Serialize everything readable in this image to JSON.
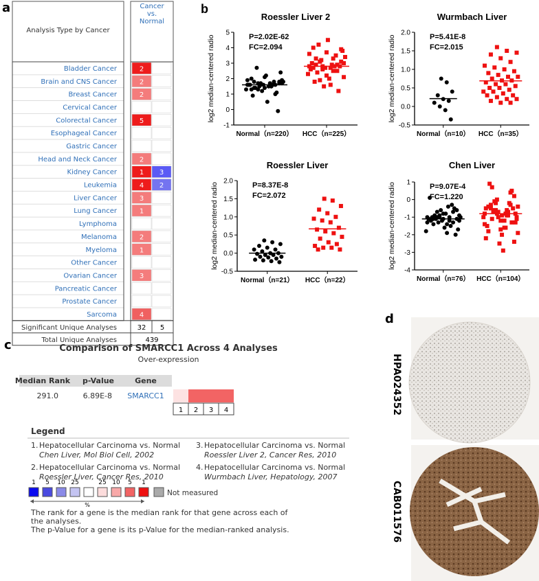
{
  "panel_a": {
    "letter": "a",
    "header": "Analysis Type by Cancer",
    "column_header": [
      "Cancer",
      "vs.",
      "Normal"
    ],
    "rows": [
      {
        "name": "Bladder Cancer",
        "over": 2,
        "over_color": "#ee1c1c",
        "under": null,
        "under_color": null
      },
      {
        "name": "Brain and CNS Cancer",
        "over": 2,
        "over_color": "#f47c7c",
        "under": null,
        "under_color": null
      },
      {
        "name": "Breast Cancer",
        "over": 2,
        "over_color": "#f47c7c",
        "under": null,
        "under_color": null
      },
      {
        "name": "Cervical Cancer",
        "over": null,
        "over_color": null,
        "under": null,
        "under_color": null
      },
      {
        "name": "Colorectal Cancer",
        "over": 5,
        "over_color": "#ee1c1c",
        "under": null,
        "under_color": null
      },
      {
        "name": "Esophageal Cancer",
        "over": null,
        "over_color": null,
        "under": null,
        "under_color": null
      },
      {
        "name": "Gastric Cancer",
        "over": null,
        "over_color": null,
        "under": null,
        "under_color": null
      },
      {
        "name": "Head and Neck Cancer",
        "over": 2,
        "over_color": "#f47c7c",
        "under": null,
        "under_color": null
      },
      {
        "name": "Kidney Cancer",
        "over": 1,
        "over_color": "#ee1c1c",
        "under": 3,
        "under_color": "#5a5af5"
      },
      {
        "name": "Leukemia",
        "over": 4,
        "over_color": "#ee1c1c",
        "under": 2,
        "under_color": "#7474f0"
      },
      {
        "name": "Liver Cancer",
        "over": 3,
        "over_color": "#f47c7c",
        "under": null,
        "under_color": null
      },
      {
        "name": "Lung Cancer",
        "over": 1,
        "over_color": "#f47c7c",
        "under": null,
        "under_color": null
      },
      {
        "name": "Lymphoma",
        "over": null,
        "over_color": null,
        "under": null,
        "under_color": null
      },
      {
        "name": "Melanoma",
        "over": 2,
        "over_color": "#f47c7c",
        "under": null,
        "under_color": null
      },
      {
        "name": "Myeloma",
        "over": 1,
        "over_color": "#f47c7c",
        "under": null,
        "under_color": null
      },
      {
        "name": "Other Cancer",
        "over": null,
        "over_color": null,
        "under": null,
        "under_color": null
      },
      {
        "name": "Ovarian Cancer",
        "over": 3,
        "over_color": "#f47c7c",
        "under": null,
        "under_color": null
      },
      {
        "name": "Pancreatic Cancer",
        "over": null,
        "over_color": null,
        "under": null,
        "under_color": null
      },
      {
        "name": "Prostate Cancer",
        "over": null,
        "over_color": null,
        "under": null,
        "under_color": null
      },
      {
        "name": "Sarcoma",
        "over": 4,
        "over_color": "#f06060",
        "under": null,
        "under_color": null
      }
    ],
    "significant": {
      "label": "Significant Unique Analyses",
      "over": 32,
      "under": 5
    },
    "total": {
      "label": "Total Unique Analyses",
      "value": 439
    }
  },
  "panel_b": {
    "letter": "b"
  },
  "chart_data": [
    {
      "type": "scatter",
      "title": "Roessler Liver 2",
      "ylabel": "log2 median-centered radio",
      "annotations": [
        "P=2.02E-62",
        "FC=2.094"
      ],
      "ylim": [
        -1,
        5
      ],
      "yticks": [
        -1,
        0,
        1,
        2,
        3,
        4,
        5
      ],
      "groups": [
        {
          "label": "Normal（n=220）",
          "color": "#000000",
          "marker": "circle",
          "mean": 1.6,
          "values": [
            1.6,
            1.5,
            1.7,
            1.8,
            1.4,
            1.6,
            1.9,
            1.3,
            1.5,
            1.7,
            2.0,
            1.2,
            1.6,
            1.8,
            1.4,
            2.2,
            1.1,
            1.6,
            1.5,
            1.7,
            2.4,
            0.9,
            1.6,
            1.8,
            1.3,
            2.7,
            0.5,
            -0.1,
            1.6,
            1.7,
            1.5,
            1.9,
            1.4,
            2.1,
            1.0,
            1.6,
            1.7,
            1.5,
            1.8,
            1.3
          ]
        },
        {
          "label": "HCC（n=225）",
          "color": "#ee1111",
          "marker": "square",
          "mean": 2.8,
          "values": [
            2.8,
            2.5,
            3.0,
            3.3,
            2.2,
            2.9,
            3.6,
            1.9,
            2.7,
            3.1,
            4.0,
            1.5,
            2.8,
            3.4,
            2.4,
            4.5,
            1.2,
            2.6,
            3.2,
            2.9,
            3.8,
            1.8,
            2.7,
            3.5,
            2.3,
            4.2,
            2.0,
            2.8,
            3.0,
            2.6,
            3.3,
            2.1,
            2.9,
            3.7,
            2.5,
            2.8,
            3.1,
            1.6,
            3.9,
            2.7
          ]
        }
      ]
    },
    {
      "type": "scatter",
      "title": "Wurmbach Liver",
      "ylabel": "log2 median-centered radio",
      "annotations": [
        "P=5.41E-8",
        "FC=2.015"
      ],
      "ylim": [
        -0.5,
        2
      ],
      "yticks": [
        -0.5,
        {
          "value": 0,
          "label": "0.0"
        },
        0.5,
        {
          "value": 1,
          "label": "1.0"
        },
        1.5,
        {
          "value": 2,
          "label": "2.0"
        }
      ],
      "groups": [
        {
          "label": "Normal（n=10）",
          "color": "#000000",
          "marker": "circle",
          "mean": 0.21,
          "values": [
            0.75,
            0.65,
            0.4,
            0.3,
            0.2,
            0.15,
            0.1,
            0.0,
            -0.1,
            -0.35
          ]
        },
        {
          "label": "HCC（n=35）",
          "color": "#ee1111",
          "marker": "square",
          "mean": 0.69,
          "values": [
            1.6,
            1.5,
            1.45,
            1.4,
            1.3,
            1.2,
            1.1,
            1.05,
            1.0,
            0.95,
            0.9,
            0.85,
            0.8,
            0.8,
            0.75,
            0.7,
            0.7,
            0.65,
            0.6,
            0.6,
            0.55,
            0.5,
            0.5,
            0.45,
            0.4,
            0.4,
            0.35,
            0.3,
            0.3,
            0.25,
            0.2,
            0.2,
            0.15,
            0.1,
            0.1
          ]
        }
      ]
    },
    {
      "type": "scatter",
      "title": "Roessler Liver",
      "ylabel": "log2 median-centered radio",
      "annotations": [
        "P=8.37E-8",
        "FC=2.072"
      ],
      "ylim": [
        -0.5,
        2
      ],
      "yticks": [
        -0.5,
        {
          "value": 0,
          "label": "0.0"
        },
        0.5,
        {
          "value": 1,
          "label": "1.0"
        },
        1.5,
        {
          "value": 2,
          "label": "2.0"
        }
      ],
      "groups": [
        {
          "label": "Normal（n=21）",
          "color": "#000000",
          "marker": "circle",
          "mean": 0.0,
          "values": [
            0.35,
            0.3,
            0.25,
            0.2,
            0.15,
            0.1,
            0.1,
            0.05,
            0.0,
            0.0,
            -0.02,
            -0.05,
            -0.05,
            -0.1,
            -0.1,
            -0.12,
            -0.15,
            -0.18,
            -0.2,
            -0.22,
            -0.25
          ]
        },
        {
          "label": "HCC（n=22）",
          "color": "#ee1111",
          "marker": "square",
          "mean": 0.67,
          "values": [
            1.5,
            1.45,
            1.3,
            1.2,
            1.1,
            1.0,
            0.95,
            0.9,
            0.85,
            0.7,
            0.65,
            0.6,
            0.55,
            0.45,
            0.4,
            0.3,
            0.25,
            0.2,
            0.15,
            0.15,
            0.1,
            0.1
          ]
        }
      ]
    },
    {
      "type": "scatter",
      "title": "Chen Liver",
      "ylabel": "log2 median-centered radio",
      "annotations": [
        "P=9.07E-4",
        "FC=1.220"
      ],
      "ylim": [
        -4,
        1
      ],
      "yticks": [
        -4,
        -3,
        -2,
        -1,
        0,
        1
      ],
      "groups": [
        {
          "label": "Normal（n=76）",
          "color": "#000000",
          "marker": "circle",
          "mean": -1.1,
          "values": [
            -0.9,
            -1.0,
            -1.2,
            -1.1,
            -0.8,
            -1.3,
            -1.0,
            -0.7,
            -1.4,
            -1.1,
            -1.2,
            -0.6,
            -1.5,
            -1.0,
            -0.9,
            -1.6,
            -0.5,
            -1.1,
            -1.3,
            -0.4,
            -1.7,
            -1.0,
            -1.2,
            -0.3,
            -1.8,
            -1.1,
            -0.8,
            -2.0,
            0.1,
            -1.0,
            -1.2,
            -0.9,
            -1.4,
            -1.1,
            -0.7,
            -1.3,
            -1.0,
            -1.9,
            -0.6,
            -1.1
          ]
        },
        {
          "label": "HCC（n=104）",
          "color": "#ee1111",
          "marker": "square",
          "mean": -0.8,
          "values": [
            -0.8,
            -0.6,
            -1.0,
            -0.5,
            -1.2,
            -0.3,
            -1.4,
            -0.1,
            -1.6,
            0.2,
            -1.8,
            -0.7,
            -0.9,
            -0.4,
            -1.1,
            -2.0,
            0.5,
            -2.2,
            -0.6,
            -0.8,
            -1.3,
            0.9,
            -2.5,
            -0.2,
            -1.0,
            -0.7,
            -2.9,
            -0.5,
            -1.5,
            0.0,
            -0.9,
            -1.1,
            -0.3,
            -1.7,
            0.4,
            -0.8,
            -0.6,
            -1.2,
            -2.4,
            -0.4,
            -1.0,
            -0.7,
            -1.9,
            0.7,
            -0.9,
            -1.3,
            -0.5,
            -0.2,
            -1.6,
            -0.8
          ]
        }
      ]
    }
  ],
  "panel_c": {
    "letter": "c",
    "title": "Comparison of SMARCC1 Across 4 Analyses",
    "subtitle": "Over-expression",
    "headers": [
      "Median Rank",
      "p-Value",
      "Gene"
    ],
    "row": [
      "291.0",
      "6.89E-8",
      "SMARCC1"
    ],
    "columns": [
      1,
      2,
      3,
      4
    ],
    "cell_colors": [
      "#fde2e2",
      "#f26464",
      "#f26464",
      "#f26464"
    ],
    "legend_title": "Legend",
    "legend_items": [
      {
        "number": "1.",
        "title": "Hepatocellular Carcinoma vs. Normal",
        "source": "Chen Liver, Mol Biol Cell, 2002"
      },
      {
        "number": "2.",
        "title": "Hepatocellular Carcinoma vs. Normal",
        "source": "Roessler Liver, Cancer Res, 2010"
      },
      {
        "number": "3.",
        "title": "Hepatocellular Carcinoma vs. Normal",
        "source": "Roessler Liver 2, Cancer Res, 2010"
      },
      {
        "number": "4.",
        "title": "Hepatocellular Carcinoma vs. Normal",
        "source": "Wurmbach Liver, Hepatology, 2007"
      }
    ],
    "color_scale": [
      {
        "label": 1,
        "color": "#0a0af0"
      },
      {
        "label": 5,
        "color": "#4a4ae0"
      },
      {
        "label": 10,
        "color": "#8a8ae8"
      },
      {
        "label": 25,
        "color": "#c4c4f2"
      },
      {
        "label": null,
        "color": "#ffffff"
      },
      {
        "label": 25,
        "color": "#fcdcdc"
      },
      {
        "label": 10,
        "color": "#f8a8a8"
      },
      {
        "label": 5,
        "color": "#f26464"
      },
      {
        "label": 1,
        "color": "#ee1111"
      }
    ],
    "scale_unit": "%",
    "not_measured": "Not measured",
    "notes": [
      "The rank for a gene is the median rank for that gene across each of",
      "the analyses.",
      "The p-Value for a gene is its p-Value for the median-ranked analysis."
    ]
  },
  "panel_d": {
    "letter": "d",
    "images": [
      {
        "label": "HPA024352"
      },
      {
        "label": "CAB011576"
      }
    ]
  }
}
